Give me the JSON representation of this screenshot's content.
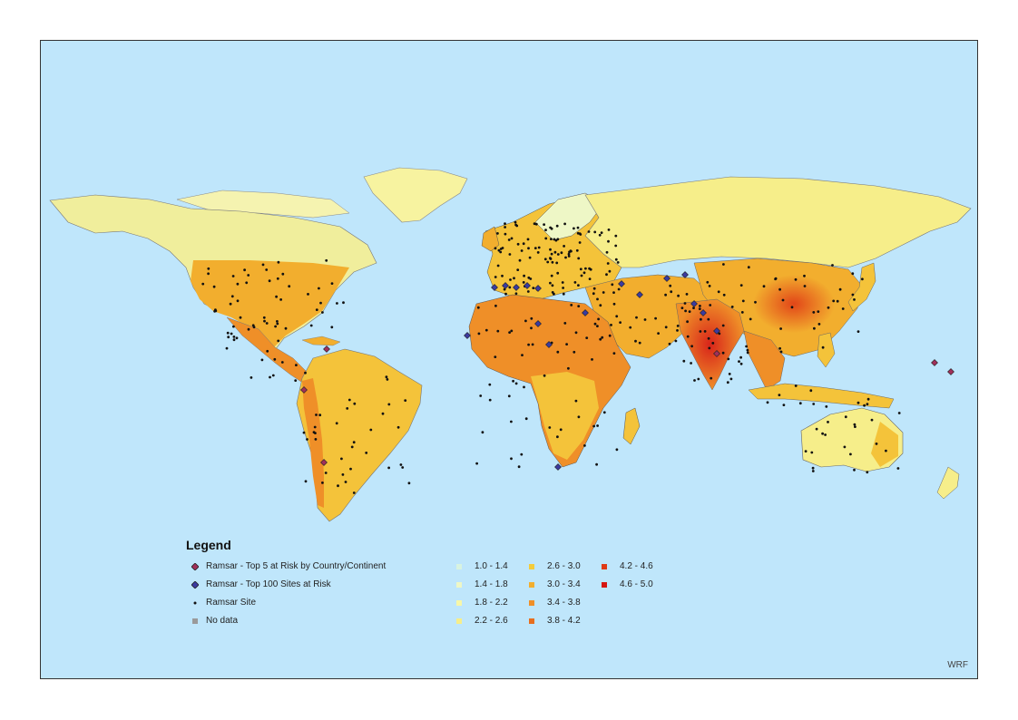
{
  "legend": {
    "title": "Legend",
    "symbols": [
      {
        "label": "Ramsar - Top 5 at Risk by Country/Continent",
        "icon": "diamond-purple-icon",
        "color": "#a0305a"
      },
      {
        "label": "Ramsar - Top 100 Sites at Risk",
        "icon": "diamond-blue-icon",
        "color": "#3b3ba0"
      },
      {
        "label": "Ramsar Site",
        "icon": "dot-icon",
        "color": "#111111"
      },
      {
        "label": "No data",
        "icon": "square-gray-icon",
        "color": "#9a9a9a"
      }
    ],
    "classes": [
      {
        "label": "1.0 - 1.4",
        "color": "#d8f3e0"
      },
      {
        "label": "1.4 - 1.8",
        "color": "#eef7c6"
      },
      {
        "label": "1.8 - 2.2",
        "color": "#f7f7a8"
      },
      {
        "label": "2.2 - 2.6",
        "color": "#f6ee8a"
      },
      {
        "label": "2.6 - 3.0",
        "color": "#f4cc3a"
      },
      {
        "label": "3.0 - 3.4",
        "color": "#f2ae2e"
      },
      {
        "label": "3.4 - 3.8",
        "color": "#ef8f28"
      },
      {
        "label": "3.8 - 4.2",
        "color": "#e76e1e"
      },
      {
        "label": "4.2 - 4.6",
        "color": "#e03a16"
      },
      {
        "label": "4.6 - 5.0",
        "color": "#d61610"
      }
    ]
  },
  "credit": "WRF",
  "colors": {
    "ocean": "#bfe6fb",
    "land_low": "#f6ee8a",
    "land_mid": "#f4b838",
    "land_high": "#e8601e",
    "land_peak": "#d8241a",
    "ice": "#f7f3a0",
    "no_data": "#9a9a9a"
  }
}
